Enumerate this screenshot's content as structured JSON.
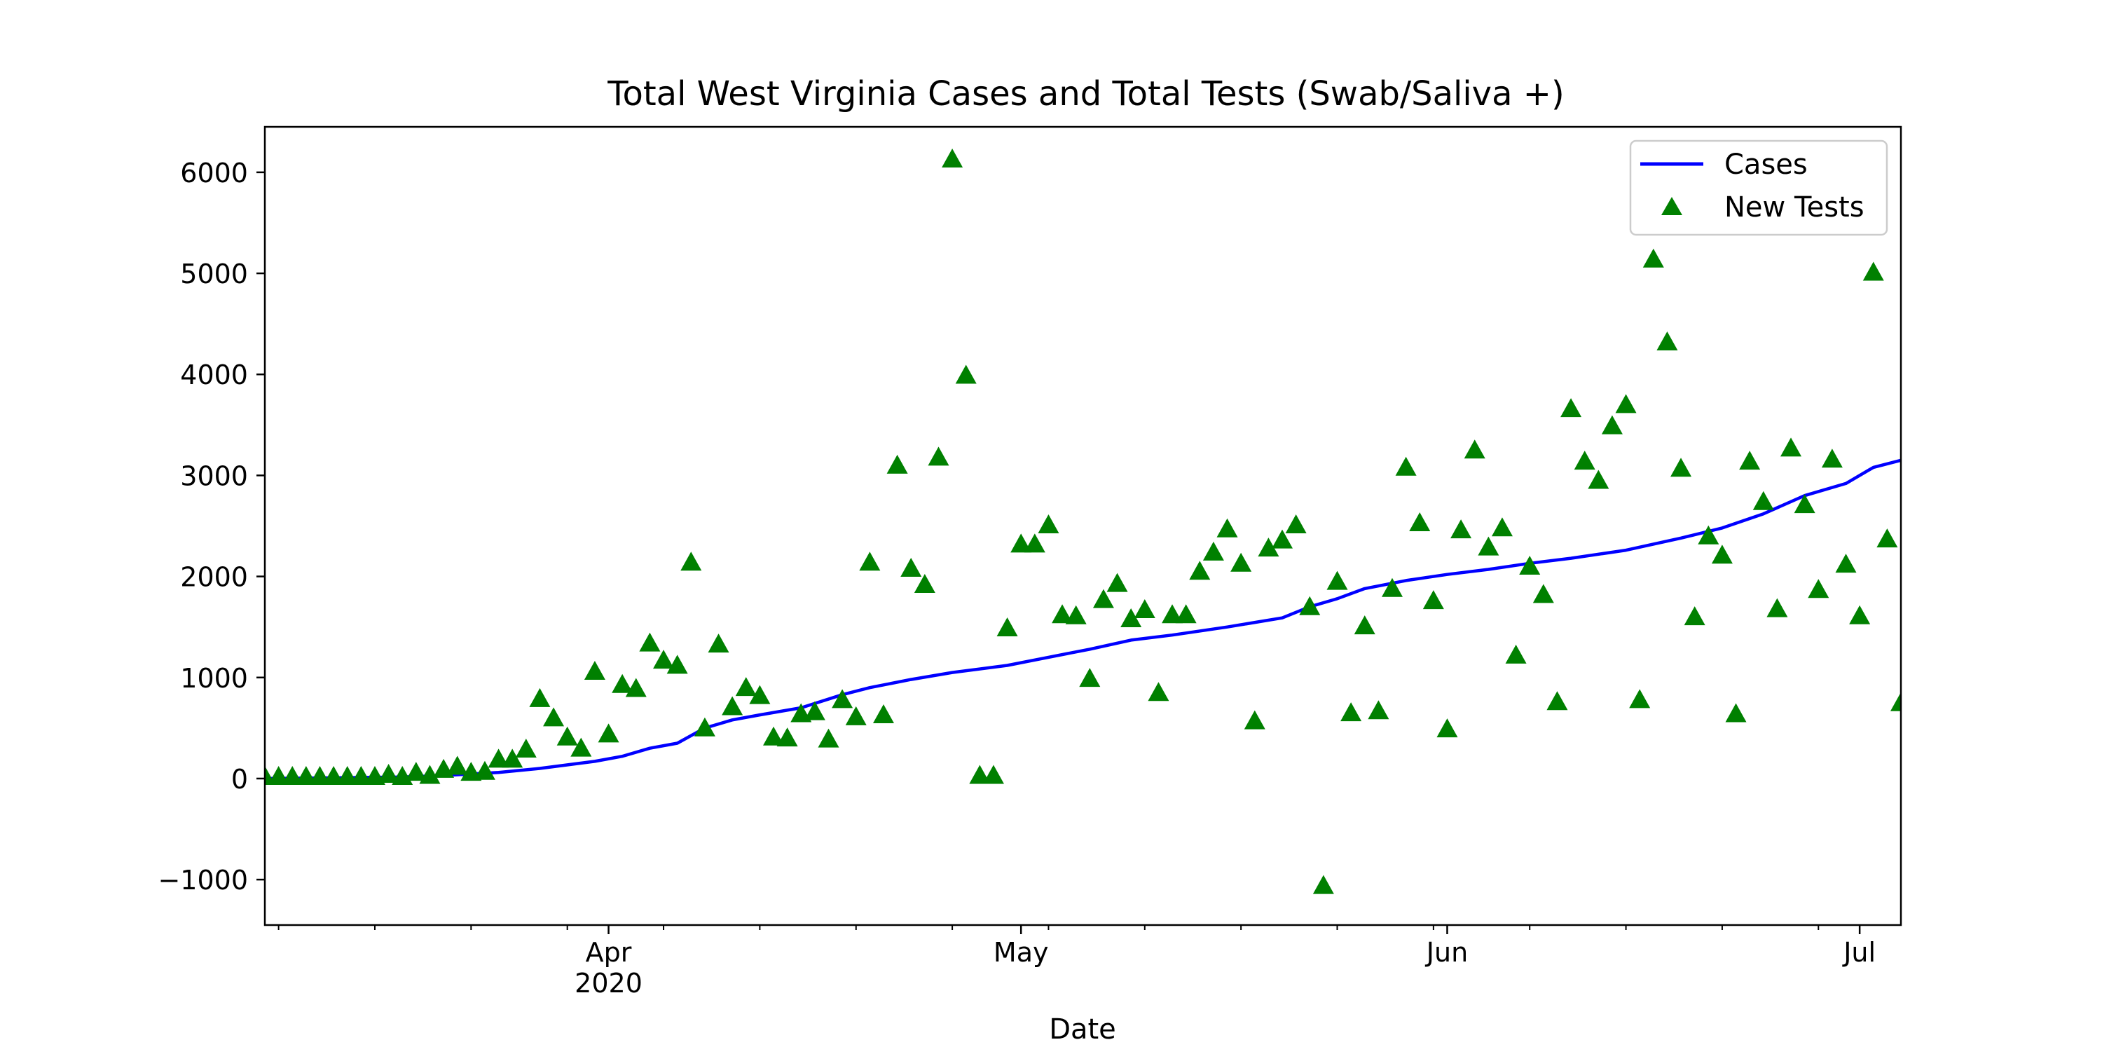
{
  "chart_data": {
    "type": "line",
    "title": "Total West Virginia Cases and Total Tests (Swab/Saliva +)",
    "xlabel": "Date",
    "ylabel": "",
    "xlim": [
      "2020-03-07",
      "2020-07-04"
    ],
    "ylim": [
      -1450,
      6450
    ],
    "y_ticks": [
      -1000,
      0,
      1000,
      2000,
      3000,
      4000,
      5000,
      6000
    ],
    "y_tick_labels": [
      "−1000",
      "0",
      "1000",
      "2000",
      "3000",
      "4000",
      "5000",
      "6000"
    ],
    "x_major_ticks": [
      {
        "date": "2020-04-01",
        "label": "Apr",
        "sublabel": "2020"
      },
      {
        "date": "2020-05-01",
        "label": "May",
        "sublabel": ""
      },
      {
        "date": "2020-06-01",
        "label": "Jun",
        "sublabel": ""
      },
      {
        "date": "2020-07-01",
        "label": "Jul",
        "sublabel": ""
      }
    ],
    "x_minor_ticks": [
      "2020-03-08",
      "2020-03-15",
      "2020-03-22",
      "2020-03-29",
      "2020-04-05",
      "2020-04-12",
      "2020-04-19",
      "2020-04-26",
      "2020-05-03",
      "2020-05-10",
      "2020-05-17",
      "2020-05-24",
      "2020-05-31",
      "2020-06-07",
      "2020-06-14",
      "2020-06-21",
      "2020-06-28"
    ],
    "grid": false,
    "legend": "top-right",
    "series": [
      {
        "name": "Cases",
        "type": "line",
        "color": "#0000ff",
        "x": [
          "2020-03-07",
          "2020-03-17",
          "2020-03-20",
          "2020-03-24",
          "2020-03-27",
          "2020-03-31",
          "2020-04-02",
          "2020-04-04",
          "2020-04-06",
          "2020-04-08",
          "2020-04-10",
          "2020-04-12",
          "2020-04-15",
          "2020-04-18",
          "2020-04-20",
          "2020-04-23",
          "2020-04-26",
          "2020-04-30",
          "2020-05-03",
          "2020-05-06",
          "2020-05-09",
          "2020-05-12",
          "2020-05-16",
          "2020-05-20",
          "2020-05-22",
          "2020-05-24",
          "2020-05-26",
          "2020-05-29",
          "2020-06-01",
          "2020-06-04",
          "2020-06-07",
          "2020-06-10",
          "2020-06-14",
          "2020-06-18",
          "2020-06-21",
          "2020-06-24",
          "2020-06-27",
          "2020-06-30",
          "2020-07-02",
          "2020-07-04"
        ],
        "values": [
          0,
          15,
          30,
          60,
          100,
          170,
          220,
          300,
          350,
          500,
          580,
          630,
          700,
          830,
          900,
          980,
          1050,
          1120,
          1200,
          1280,
          1370,
          1420,
          1500,
          1590,
          1700,
          1780,
          1880,
          1960,
          2020,
          2070,
          2130,
          2180,
          2260,
          2380,
          2480,
          2620,
          2800,
          2920,
          3080,
          3150
        ]
      },
      {
        "name": "New Tests",
        "type": "scatter",
        "marker": "triangle",
        "color": "#008000",
        "points": [
          {
            "x": "2020-03-07",
            "y": 0
          },
          {
            "x": "2020-03-08",
            "y": 0
          },
          {
            "x": "2020-03-09",
            "y": 0
          },
          {
            "x": "2020-03-10",
            "y": 0
          },
          {
            "x": "2020-03-11",
            "y": 0
          },
          {
            "x": "2020-03-12",
            "y": 0
          },
          {
            "x": "2020-03-13",
            "y": 0
          },
          {
            "x": "2020-03-14",
            "y": 0
          },
          {
            "x": "2020-03-15",
            "y": 0
          },
          {
            "x": "2020-03-16",
            "y": 20
          },
          {
            "x": "2020-03-17",
            "y": 0
          },
          {
            "x": "2020-03-18",
            "y": 40
          },
          {
            "x": "2020-03-19",
            "y": 10
          },
          {
            "x": "2020-03-20",
            "y": 70
          },
          {
            "x": "2020-03-21",
            "y": 100
          },
          {
            "x": "2020-03-22",
            "y": 40
          },
          {
            "x": "2020-03-23",
            "y": 50
          },
          {
            "x": "2020-03-24",
            "y": 170
          },
          {
            "x": "2020-03-25",
            "y": 170
          },
          {
            "x": "2020-03-26",
            "y": 270
          },
          {
            "x": "2020-03-27",
            "y": 770
          },
          {
            "x": "2020-03-28",
            "y": 580
          },
          {
            "x": "2020-03-29",
            "y": 390
          },
          {
            "x": "2020-03-30",
            "y": 280
          },
          {
            "x": "2020-03-31",
            "y": 1040
          },
          {
            "x": "2020-04-01",
            "y": 420
          },
          {
            "x": "2020-04-02",
            "y": 910
          },
          {
            "x": "2020-04-03",
            "y": 870
          },
          {
            "x": "2020-04-04",
            "y": 1320
          },
          {
            "x": "2020-04-05",
            "y": 1150
          },
          {
            "x": "2020-04-06",
            "y": 1100
          },
          {
            "x": "2020-04-07",
            "y": 2120
          },
          {
            "x": "2020-04-08",
            "y": 480
          },
          {
            "x": "2020-04-09",
            "y": 1310
          },
          {
            "x": "2020-04-10",
            "y": 690
          },
          {
            "x": "2020-04-11",
            "y": 880
          },
          {
            "x": "2020-04-12",
            "y": 800
          },
          {
            "x": "2020-04-13",
            "y": 390
          },
          {
            "x": "2020-04-14",
            "y": 380
          },
          {
            "x": "2020-04-15",
            "y": 620
          },
          {
            "x": "2020-04-16",
            "y": 640
          },
          {
            "x": "2020-04-17",
            "y": 370
          },
          {
            "x": "2020-04-18",
            "y": 760
          },
          {
            "x": "2020-04-19",
            "y": 590
          },
          {
            "x": "2020-04-20",
            "y": 2120
          },
          {
            "x": "2020-04-21",
            "y": 610
          },
          {
            "x": "2020-04-22",
            "y": 3080
          },
          {
            "x": "2020-04-23",
            "y": 2060
          },
          {
            "x": "2020-04-24",
            "y": 1900
          },
          {
            "x": "2020-04-25",
            "y": 3160
          },
          {
            "x": "2020-04-26",
            "y": 6110
          },
          {
            "x": "2020-04-27",
            "y": 3970
          },
          {
            "x": "2020-04-28",
            "y": 10
          },
          {
            "x": "2020-04-29",
            "y": 10
          },
          {
            "x": "2020-04-30",
            "y": 1470
          },
          {
            "x": "2020-05-01",
            "y": 2300
          },
          {
            "x": "2020-05-02",
            "y": 2300
          },
          {
            "x": "2020-05-03",
            "y": 2490
          },
          {
            "x": "2020-05-04",
            "y": 1600
          },
          {
            "x": "2020-05-05",
            "y": 1590
          },
          {
            "x": "2020-05-06",
            "y": 970
          },
          {
            "x": "2020-05-07",
            "y": 1750
          },
          {
            "x": "2020-05-08",
            "y": 1910
          },
          {
            "x": "2020-05-09",
            "y": 1560
          },
          {
            "x": "2020-05-10",
            "y": 1650
          },
          {
            "x": "2020-05-11",
            "y": 830
          },
          {
            "x": "2020-05-12",
            "y": 1600
          },
          {
            "x": "2020-05-13",
            "y": 1600
          },
          {
            "x": "2020-05-14",
            "y": 2030
          },
          {
            "x": "2020-05-15",
            "y": 2220
          },
          {
            "x": "2020-05-16",
            "y": 2450
          },
          {
            "x": "2020-05-17",
            "y": 2110
          },
          {
            "x": "2020-05-18",
            "y": 550
          },
          {
            "x": "2020-05-19",
            "y": 2260
          },
          {
            "x": "2020-05-20",
            "y": 2340
          },
          {
            "x": "2020-05-21",
            "y": 2490
          },
          {
            "x": "2020-05-22",
            "y": 1680
          },
          {
            "x": "2020-05-23",
            "y": -1080
          },
          {
            "x": "2020-05-24",
            "y": 1930
          },
          {
            "x": "2020-05-25",
            "y": 630
          },
          {
            "x": "2020-05-26",
            "y": 1490
          },
          {
            "x": "2020-05-27",
            "y": 650
          },
          {
            "x": "2020-05-28",
            "y": 1860
          },
          {
            "x": "2020-05-29",
            "y": 3060
          },
          {
            "x": "2020-05-30",
            "y": 2510
          },
          {
            "x": "2020-05-31",
            "y": 1740
          },
          {
            "x": "2020-06-01",
            "y": 470
          },
          {
            "x": "2020-06-02",
            "y": 2440
          },
          {
            "x": "2020-06-03",
            "y": 3230
          },
          {
            "x": "2020-06-04",
            "y": 2270
          },
          {
            "x": "2020-06-05",
            "y": 2460
          },
          {
            "x": "2020-06-06",
            "y": 1200
          },
          {
            "x": "2020-06-07",
            "y": 2080
          },
          {
            "x": "2020-06-08",
            "y": 1800
          },
          {
            "x": "2020-06-09",
            "y": 740
          },
          {
            "x": "2020-06-10",
            "y": 3640
          },
          {
            "x": "2020-06-11",
            "y": 3120
          },
          {
            "x": "2020-06-12",
            "y": 2930
          },
          {
            "x": "2020-06-13",
            "y": 3470
          },
          {
            "x": "2020-06-14",
            "y": 3680
          },
          {
            "x": "2020-06-15",
            "y": 760
          },
          {
            "x": "2020-06-16",
            "y": 5120
          },
          {
            "x": "2020-06-17",
            "y": 4300
          },
          {
            "x": "2020-06-18",
            "y": 3050
          },
          {
            "x": "2020-06-19",
            "y": 1580
          },
          {
            "x": "2020-06-20",
            "y": 2380
          },
          {
            "x": "2020-06-21",
            "y": 2190
          },
          {
            "x": "2020-06-22",
            "y": 620
          },
          {
            "x": "2020-06-23",
            "y": 3120
          },
          {
            "x": "2020-06-24",
            "y": 2720
          },
          {
            "x": "2020-06-25",
            "y": 1660
          },
          {
            "x": "2020-06-26",
            "y": 3250
          },
          {
            "x": "2020-06-27",
            "y": 2690
          },
          {
            "x": "2020-06-28",
            "y": 1850
          },
          {
            "x": "2020-06-29",
            "y": 3140
          },
          {
            "x": "2020-06-30",
            "y": 2100
          },
          {
            "x": "2020-07-01",
            "y": 1590
          },
          {
            "x": "2020-07-02",
            "y": 4990
          },
          {
            "x": "2020-07-03",
            "y": 2350
          },
          {
            "x": "2020-07-04",
            "y": 730
          }
        ]
      }
    ]
  }
}
